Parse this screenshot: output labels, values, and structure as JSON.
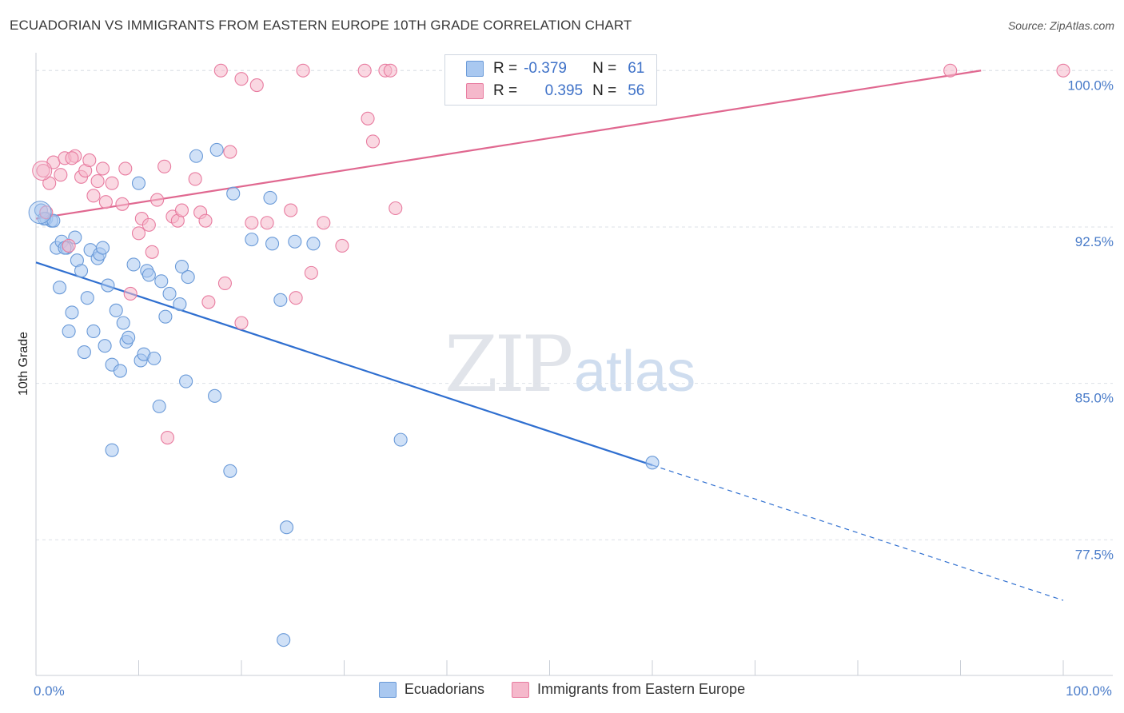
{
  "header": {
    "title": "ECUADORIAN VS IMMIGRANTS FROM EASTERN EUROPE 10TH GRADE CORRELATION CHART",
    "source": "Source: ZipAtlas.com"
  },
  "watermark": {
    "zip": "ZIP",
    "atlas": "atlas"
  },
  "legend_box": {
    "rows": [
      {
        "r_label": "R =",
        "r_value": "-0.379",
        "n_label": "N =",
        "n_value": "61",
        "color": "#a9c8f0"
      },
      {
        "r_label": "R =",
        "r_value": "0.395",
        "n_label": "N =",
        "n_value": "56",
        "color": "#f5b8cb"
      }
    ]
  },
  "bottom_legend": {
    "items": [
      {
        "label": "Ecuadorians",
        "color": "#a9c8f0"
      },
      {
        "label": "Immigrants from Eastern Europe",
        "color": "#f5b8cb"
      }
    ]
  },
  "chart_data": {
    "type": "scatter",
    "ylabel": "10th Grade",
    "xlim": [
      0,
      100
    ],
    "ylim": [
      71.0,
      100.7
    ],
    "y_ticks": [
      {
        "value": 100.0,
        "label": "100.0%"
      },
      {
        "value": 92.5,
        "label": "92.5%"
      },
      {
        "value": 85.0,
        "label": "85.0%"
      },
      {
        "value": 77.5,
        "label": "77.5%"
      }
    ],
    "x_ticks": [
      {
        "value": 0,
        "label": "0.0%"
      },
      {
        "value": 100,
        "label": "100.0%"
      }
    ],
    "grid": true,
    "series": [
      {
        "name": "Ecuadorians",
        "color": "#6a9ad8",
        "fill": "#a9c8f0",
        "trend": {
          "x0": 0,
          "y0": 90.8,
          "x1": 100,
          "y1": 74.6,
          "solid_until": 60
        },
        "points": [
          [
            0.5,
            93.3
          ],
          [
            1.0,
            92.9
          ],
          [
            1.5,
            92.8
          ],
          [
            2.0,
            91.5
          ],
          [
            2.5,
            91.8
          ],
          [
            2.3,
            89.6
          ],
          [
            3.0,
            91.5
          ],
          [
            3.2,
            87.5
          ],
          [
            3.5,
            88.4
          ],
          [
            3.8,
            92.0
          ],
          [
            4.0,
            90.9
          ],
          [
            4.4,
            90.4
          ],
          [
            4.7,
            86.5
          ],
          [
            5.0,
            89.1
          ],
          [
            5.3,
            91.4
          ],
          [
            5.6,
            87.5
          ],
          [
            6.0,
            91.0
          ],
          [
            6.2,
            91.2
          ],
          [
            6.5,
            91.5
          ],
          [
            6.7,
            86.8
          ],
          [
            7.0,
            89.7
          ],
          [
            7.4,
            85.9
          ],
          [
            7.8,
            88.5
          ],
          [
            8.2,
            85.6
          ],
          [
            8.5,
            87.9
          ],
          [
            8.8,
            87.0
          ],
          [
            9.0,
            87.2
          ],
          [
            9.5,
            90.7
          ],
          [
            10.0,
            94.6
          ],
          [
            10.2,
            86.1
          ],
          [
            10.5,
            86.4
          ],
          [
            10.8,
            90.4
          ],
          [
            11.0,
            90.2
          ],
          [
            11.5,
            86.2
          ],
          [
            12.0,
            83.9
          ],
          [
            12.2,
            89.9
          ],
          [
            12.6,
            88.2
          ],
          [
            13.0,
            89.3
          ],
          [
            14.0,
            88.8
          ],
          [
            14.2,
            90.6
          ],
          [
            14.8,
            90.1
          ],
          [
            14.6,
            85.1
          ],
          [
            15.6,
            95.9
          ],
          [
            17.4,
            84.4
          ],
          [
            17.6,
            96.2
          ],
          [
            18.9,
            80.8
          ],
          [
            19.2,
            94.1
          ],
          [
            21.0,
            91.9
          ],
          [
            22.8,
            93.9
          ],
          [
            23.0,
            91.7
          ],
          [
            23.8,
            89.0
          ],
          [
            25.2,
            91.8
          ],
          [
            27.0,
            91.7
          ],
          [
            24.4,
            78.1
          ],
          [
            24.1,
            72.7
          ],
          [
            7.4,
            81.8
          ],
          [
            35.5,
            82.3
          ],
          [
            60.0,
            81.2
          ],
          [
            0.8,
            92.9
          ],
          [
            1.7,
            92.8
          ],
          [
            2.8,
            91.5
          ]
        ]
      },
      {
        "name": "Immigrants from Eastern Europe",
        "color": "#e87ca0",
        "fill": "#f5b8cb",
        "trend": {
          "x0": 0,
          "y0": 92.9,
          "x1": 92,
          "y1": 100.0,
          "solid_until": 92
        },
        "points": [
          [
            0.7,
            95.2
          ],
          [
            1.3,
            94.6
          ],
          [
            1.7,
            95.6
          ],
          [
            2.4,
            95.0
          ],
          [
            2.8,
            95.8
          ],
          [
            3.2,
            91.6
          ],
          [
            3.8,
            95.9
          ],
          [
            4.4,
            94.9
          ],
          [
            4.8,
            95.2
          ],
          [
            5.2,
            95.7
          ],
          [
            5.6,
            94.0
          ],
          [
            6.0,
            94.7
          ],
          [
            6.5,
            95.3
          ],
          [
            6.8,
            93.7
          ],
          [
            7.4,
            94.6
          ],
          [
            8.4,
            93.6
          ],
          [
            8.7,
            95.3
          ],
          [
            9.2,
            89.3
          ],
          [
            10.0,
            92.2
          ],
          [
            10.3,
            92.9
          ],
          [
            11.0,
            92.6
          ],
          [
            11.3,
            91.3
          ],
          [
            11.8,
            93.8
          ],
          [
            12.5,
            95.4
          ],
          [
            13.3,
            93.0
          ],
          [
            13.8,
            92.8
          ],
          [
            14.2,
            93.3
          ],
          [
            15.5,
            94.8
          ],
          [
            16.0,
            93.2
          ],
          [
            16.5,
            92.8
          ],
          [
            16.8,
            88.9
          ],
          [
            18.4,
            89.8
          ],
          [
            18.9,
            96.1
          ],
          [
            20.0,
            87.9
          ],
          [
            21.0,
            92.7
          ],
          [
            22.5,
            92.7
          ],
          [
            24.8,
            93.3
          ],
          [
            25.3,
            89.1
          ],
          [
            26.8,
            90.3
          ],
          [
            28.0,
            92.7
          ],
          [
            29.8,
            91.6
          ],
          [
            18.0,
            100.0
          ],
          [
            20.0,
            99.6
          ],
          [
            21.5,
            99.3
          ],
          [
            26.0,
            100.0
          ],
          [
            32.0,
            100.0
          ],
          [
            34.0,
            100.0
          ],
          [
            34.5,
            100.0
          ],
          [
            32.3,
            97.7
          ],
          [
            32.8,
            96.6
          ],
          [
            35.0,
            93.4
          ],
          [
            89.0,
            100.0
          ],
          [
            100.0,
            100.0
          ],
          [
            12.8,
            82.4
          ],
          [
            1.0,
            93.2
          ],
          [
            3.5,
            95.8
          ]
        ]
      }
    ]
  }
}
